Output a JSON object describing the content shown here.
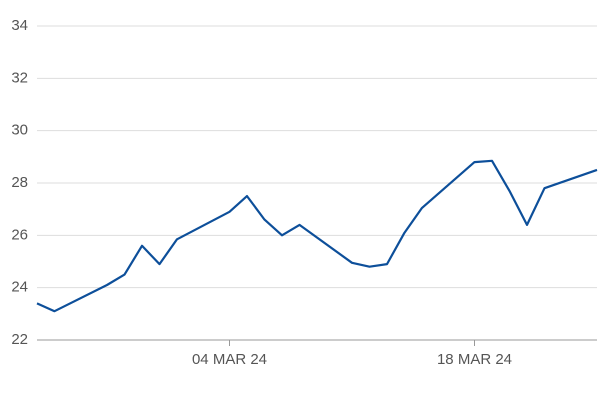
{
  "chart_data": {
    "type": "line",
    "x": [
      "2024-02-22",
      "2024-02-23",
      "2024-02-26",
      "2024-02-27",
      "2024-02-28",
      "2024-02-29",
      "2024-03-01",
      "2024-03-04",
      "2024-03-05",
      "2024-03-06",
      "2024-03-07",
      "2024-03-08",
      "2024-03-11",
      "2024-03-12",
      "2024-03-13",
      "2024-03-14",
      "2024-03-15",
      "2024-03-18",
      "2024-03-19",
      "2024-03-20",
      "2024-03-21",
      "2024-03-22",
      "2024-03-25"
    ],
    "values": [
      23.4,
      23.1,
      24.1,
      24.5,
      25.6,
      24.9,
      25.85,
      26.9,
      27.5,
      26.6,
      26.0,
      26.4,
      24.95,
      24.8,
      24.9,
      26.1,
      27.05,
      28.8,
      28.85,
      27.7,
      26.4,
      27.8,
      28.5
    ],
    "color": "#0d4f9a",
    "xlim": [
      "2024-02-22",
      "2024-03-25"
    ],
    "xticks": [
      {
        "value": "2024-03-04",
        "label": "04 MAR 24"
      },
      {
        "value": "2024-03-18",
        "label": "18 MAR 24"
      }
    ],
    "ylim": [
      22,
      34
    ],
    "yticks": [
      22,
      24,
      26,
      28,
      30,
      32,
      34
    ],
    "grid": true
  }
}
